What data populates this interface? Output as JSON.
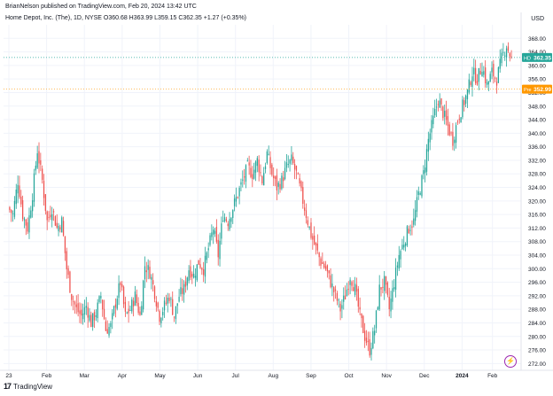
{
  "header": {
    "published_by": "BrianNelson published on TradingView.com, Feb 20, 2024 13:42 UTC",
    "symbol_line": "Home Depot, Inc. (The), 1D, NYSE  O360.68  H363.99  L359.15  C362.35  +1.27 (+0.35%)",
    "currency": "USD"
  },
  "footer": {
    "brand_logo": "17",
    "brand_text": "TradingView"
  },
  "alert_icon": "lightning-icon",
  "colors": {
    "up": "#26a69a",
    "down": "#ef5350",
    "price_tag": "#26a69a",
    "prev_tag": "#ff9800",
    "grid": "#f0f3fa"
  },
  "chart_data": {
    "type": "candlestick",
    "title": "",
    "ylim": [
      270,
      372
    ],
    "yticks": [
      272,
      276,
      280,
      284,
      288,
      292,
      296,
      300,
      304,
      308,
      312,
      316,
      320,
      324,
      328,
      332,
      336,
      340,
      344,
      348,
      352,
      356,
      360,
      364,
      368
    ],
    "ytick_labels": [
      "272.00",
      "276.00",
      "280.00",
      "284.00",
      "288.00",
      "292.00",
      "296.00",
      "300.00",
      "304.00",
      "308.00",
      "312.00",
      "316.00",
      "320.00",
      "324.00",
      "328.00",
      "332.00",
      "336.00",
      "340.00",
      "344.00",
      "348.00",
      "352.00",
      "356.00",
      "360.00",
      "364.00",
      "368.00"
    ],
    "xticks": [
      "23",
      "Feb",
      "Mar",
      "Apr",
      "May",
      "Jun",
      "Jul",
      "Aug",
      "Sep",
      "Oct",
      "Nov",
      "Dec",
      "2024",
      "Feb"
    ],
    "price_labels": [
      {
        "tag": "HD",
        "value": 362.35,
        "text": "362.35",
        "kind": "last"
      },
      {
        "tag": "Pre",
        "value": 352.99,
        "text": "352.99",
        "kind": "pre"
      }
    ],
    "close_path": [
      [
        "23",
        318
      ],
      [
        "23",
        316
      ],
      [
        "23",
        326
      ],
      [
        "23",
        316
      ],
      [
        "23",
        312
      ],
      [
        "Feb",
        322
      ],
      [
        "Feb",
        335
      ],
      [
        "Feb",
        326
      ],
      [
        "Feb",
        314
      ],
      [
        "Feb",
        318
      ],
      [
        "Feb",
        312
      ],
      [
        "Feb",
        314
      ],
      [
        "Mar",
        300
      ],
      [
        "Mar",
        292
      ],
      [
        "Mar",
        288
      ],
      [
        "Mar",
        286
      ],
      [
        "Mar",
        289
      ],
      [
        "Mar",
        284
      ],
      [
        "Mar",
        287
      ],
      [
        "Mar",
        292
      ],
      [
        "Apr",
        282
      ],
      [
        "Apr",
        283
      ],
      [
        "Apr",
        290
      ],
      [
        "Apr",
        296
      ],
      [
        "Apr",
        286
      ],
      [
        "Apr",
        288
      ],
      [
        "Apr",
        292
      ],
      [
        "Apr",
        286
      ],
      [
        "May",
        301
      ],
      [
        "May",
        299
      ],
      [
        "May",
        293
      ],
      [
        "May",
        286
      ],
      [
        "May",
        289
      ],
      [
        "May",
        292
      ],
      [
        "May",
        286
      ],
      [
        "May",
        292
      ],
      [
        "Jun",
        294
      ],
      [
        "Jun",
        300
      ],
      [
        "Jun",
        298
      ],
      [
        "Jun",
        302
      ],
      [
        "Jun",
        300
      ],
      [
        "Jun",
        306
      ],
      [
        "Jun",
        312
      ],
      [
        "Jun",
        304
      ],
      [
        "Jul",
        316
      ],
      [
        "Jul",
        314
      ],
      [
        "Jul",
        318
      ],
      [
        "Jul",
        322
      ],
      [
        "Jul",
        326
      ],
      [
        "Jul",
        330
      ],
      [
        "Jul",
        328
      ],
      [
        "Jul",
        332
      ],
      [
        "Aug",
        326
      ],
      [
        "Aug",
        334
      ],
      [
        "Aug",
        328
      ],
      [
        "Aug",
        324
      ],
      [
        "Aug",
        326
      ],
      [
        "Aug",
        330
      ],
      [
        "Aug",
        332
      ],
      [
        "Aug",
        328
      ],
      [
        "Sep",
        322
      ],
      [
        "Sep",
        316
      ],
      [
        "Sep",
        310
      ],
      [
        "Sep",
        306
      ],
      [
        "Sep",
        302
      ],
      [
        "Sep",
        300
      ],
      [
        "Sep",
        296
      ],
      [
        "Sep",
        292
      ],
      [
        "Oct",
        288
      ],
      [
        "Oct",
        292
      ],
      [
        "Oct",
        298
      ],
      [
        "Oct",
        294
      ],
      [
        "Oct",
        286
      ],
      [
        "Oct",
        280
      ],
      [
        "Oct",
        276
      ],
      [
        "Oct",
        282
      ],
      [
        "Nov",
        294
      ],
      [
        "Nov",
        296
      ],
      [
        "Nov",
        288
      ],
      [
        "Nov",
        296
      ],
      [
        "Nov",
        304
      ],
      [
        "Nov",
        308
      ],
      [
        "Nov",
        312
      ],
      [
        "Nov",
        314
      ],
      [
        "Dec",
        322
      ],
      [
        "Dec",
        328
      ],
      [
        "Dec",
        338
      ],
      [
        "Dec",
        344
      ],
      [
        "Dec",
        350
      ],
      [
        "Dec",
        346
      ],
      [
        "Dec",
        342
      ],
      [
        "Dec",
        338
      ],
      [
        "2024",
        344
      ],
      [
        "2024",
        348
      ],
      [
        "2024",
        352
      ],
      [
        "2024",
        358
      ],
      [
        "2024",
        356
      ],
      [
        "2024",
        360
      ],
      [
        "2024",
        354
      ],
      [
        "2024",
        358
      ],
      [
        "Feb",
        356
      ],
      [
        "Feb",
        362
      ],
      [
        "Feb",
        366
      ],
      [
        "Feb",
        362
      ]
    ]
  }
}
